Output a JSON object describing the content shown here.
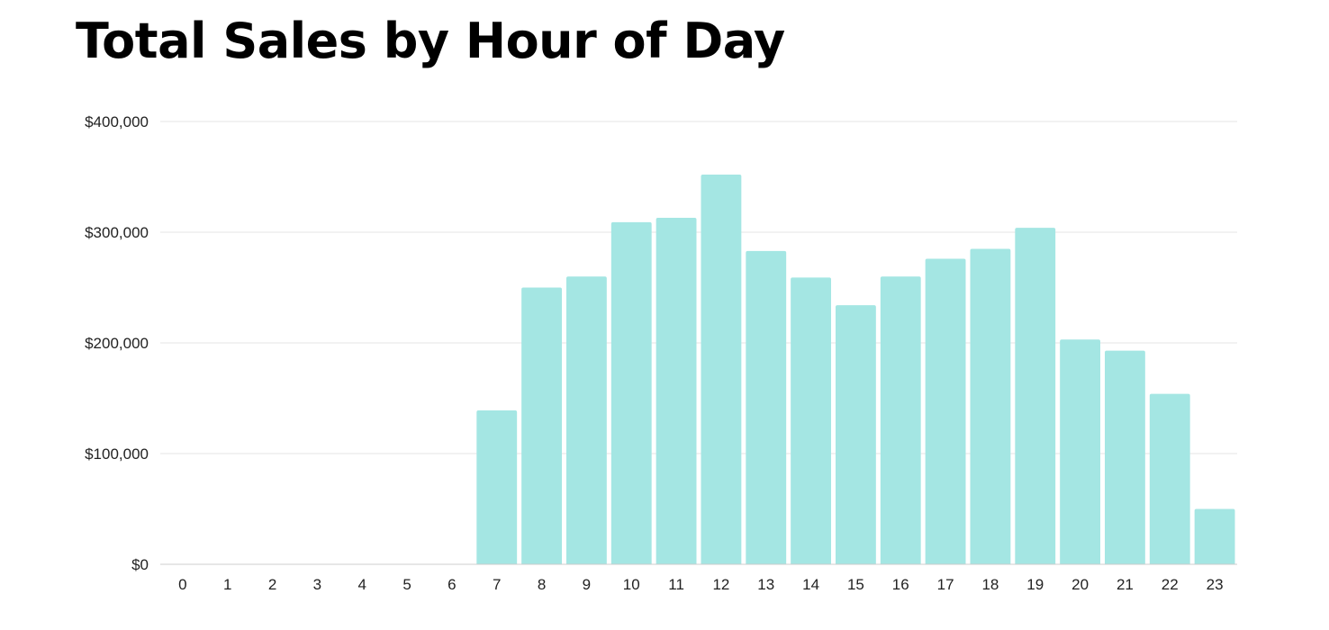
{
  "chart_data": {
    "type": "bar",
    "title": "Total Sales by Hour of Day",
    "xlabel": "",
    "ylabel": "",
    "categories": [
      "0",
      "1",
      "2",
      "3",
      "4",
      "5",
      "6",
      "7",
      "8",
      "9",
      "10",
      "11",
      "12",
      "13",
      "14",
      "15",
      "16",
      "17",
      "18",
      "19",
      "20",
      "21",
      "22",
      "23"
    ],
    "values": [
      0,
      0,
      0,
      0,
      0,
      0,
      0,
      139000,
      250000,
      260000,
      309000,
      313000,
      352000,
      283000,
      259000,
      234000,
      260000,
      276000,
      285000,
      304000,
      203000,
      193000,
      154000,
      50000
    ],
    "ylim": [
      0,
      400000
    ],
    "yticks": [
      0,
      100000,
      200000,
      300000,
      400000
    ],
    "ytick_labels": [
      "$0",
      "$100,000",
      "$200,000",
      "$300,000",
      "$400,000"
    ],
    "grid": true,
    "legend": "none",
    "bar_color": "#a4e6e3",
    "grid_color": "#e6e6e6",
    "axis_color": "#cccccc"
  }
}
